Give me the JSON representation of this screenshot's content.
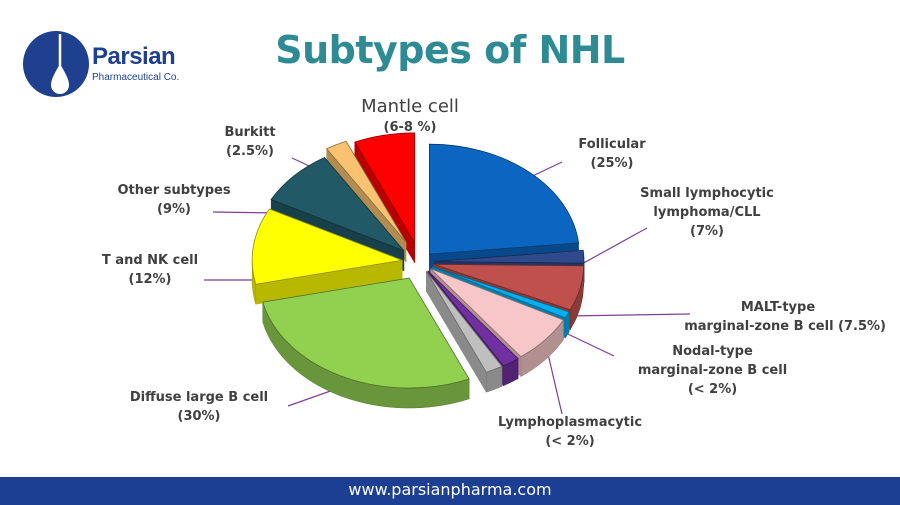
{
  "brand": {
    "name": "Parsian",
    "subtitle": "Pharmaceutical Co."
  },
  "title": "Subtypes of NHL",
  "footer": {
    "url": "www.parsianpharma.com"
  },
  "chart_data": {
    "type": "pie",
    "style": "3d-exploded",
    "title": "Subtypes of NHL",
    "slices": [
      {
        "name": "Follicular",
        "value_label": "(25%)",
        "value": 25,
        "color": "#0b66c2"
      },
      {
        "name": "Small lymphocytic lymphoma/CLL",
        "value_label": "(7%)",
        "value": 7,
        "color": "#c0504d"
      },
      {
        "name": "MALT-type marginal-zone B cell",
        "value_label": "(7.5%)",
        "value": 7.5,
        "color": "#f7c6c8"
      },
      {
        "name": "Nodal-type marginal-zone B cell",
        "value_label": "(< 2%)",
        "value": 2,
        "color": "#7030a0"
      },
      {
        "name": "Lymphoplasmacytic",
        "value_label": "(< 2%)",
        "value": 2,
        "color": "#bfbfbf"
      },
      {
        "name": "Diffuse large B cell",
        "value_label": "(30%)",
        "value": 30,
        "color": "#92d050"
      },
      {
        "name": "T and NK cell",
        "value_label": "(12%)",
        "value": 12,
        "color": "#ffff00"
      },
      {
        "name": "Other subtypes",
        "value_label": "(9%)",
        "value": 9,
        "color": "#215967"
      },
      {
        "name": "Burkitt",
        "value_label": "(2.5%)",
        "value": 2.5,
        "color": "#f9c270"
      },
      {
        "name": "Mantle cell",
        "value_label": "(6-8 %)",
        "value": 7,
        "color": "#ff0000"
      }
    ],
    "extra_slices": [
      {
        "value": 2,
        "color": "#2f4a8c"
      },
      {
        "value": 1,
        "color": "#00b0f0"
      }
    ],
    "labels": {
      "follicular": [
        "Follicular",
        "(25%)"
      ],
      "cll": [
        "Small lymphocytic",
        "lymphoma/CLL",
        "(7%)"
      ],
      "malt": [
        "MALT-type",
        "marginal-zone B cell (7.5%)"
      ],
      "nodal": [
        "Nodal-type",
        "marginal-zone B cell",
        "(< 2%)"
      ],
      "lympho": [
        "Lymphoplasmacytic",
        "(< 2%)"
      ],
      "dlbc": [
        "Diffuse large B cell",
        "(30%)"
      ],
      "tnk": [
        "T and NK cell",
        "(12%)"
      ],
      "other": [
        "Other subtypes",
        "(9%)"
      ],
      "burkitt": [
        "Burkitt",
        "(2.5%)"
      ],
      "mantle": [
        "Mantle cell",
        "(6-8 %)"
      ]
    }
  }
}
